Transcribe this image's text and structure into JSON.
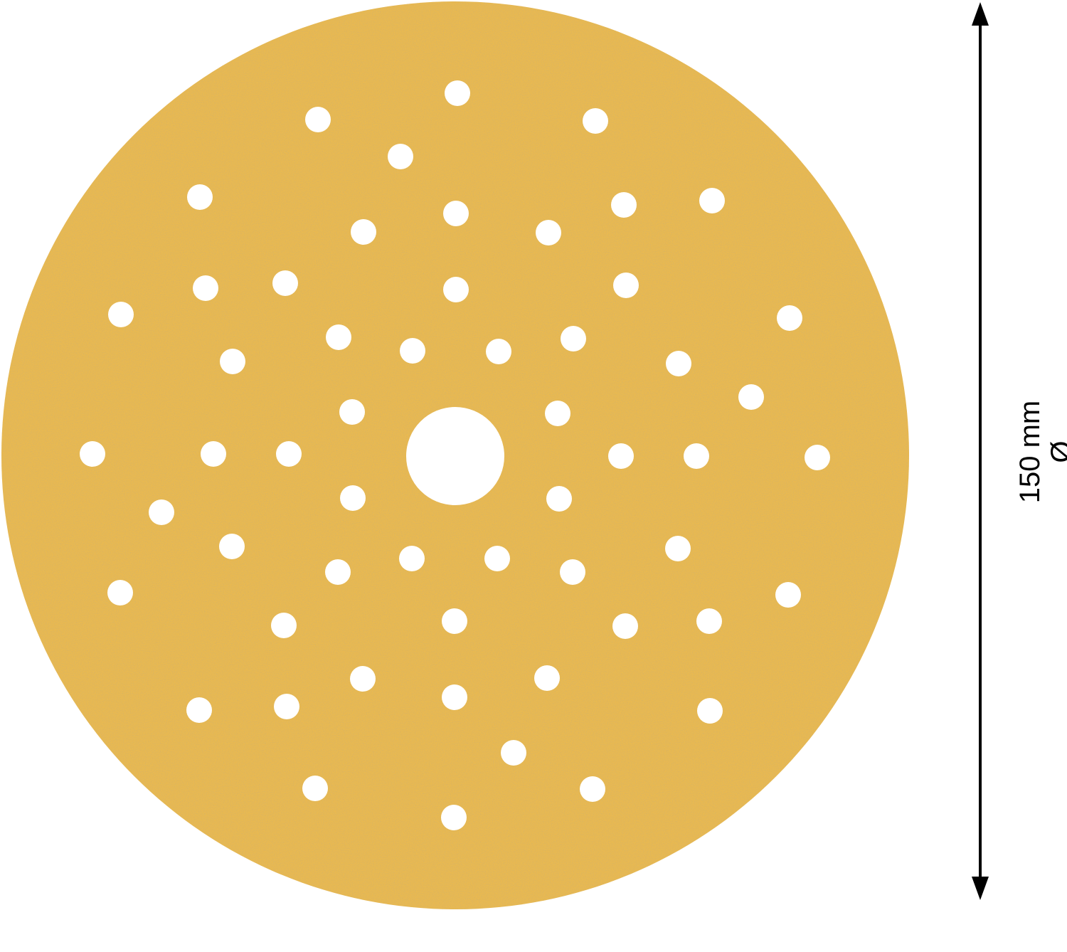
{
  "product": {
    "name": "sanding-disc",
    "colors": {
      "disc": "#e9b950",
      "grain": "#c99a3a",
      "holes": "#ffffff"
    }
  },
  "dimension": {
    "value_label": "150 mm",
    "symbol": "Ø"
  }
}
